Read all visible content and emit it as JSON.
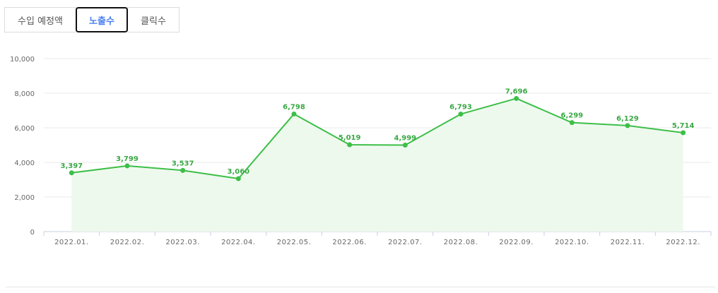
{
  "tabs": [
    {
      "label": "수입 예정액",
      "active": false
    },
    {
      "label": "노출수",
      "active": true
    },
    {
      "label": "클릭수",
      "active": false
    }
  ],
  "colors": {
    "line": "#3dbf48",
    "area": "#eef9ee",
    "label": "#3aa844",
    "tab_active": "#4a7ff2"
  },
  "chart_data": {
    "type": "area",
    "title": "",
    "xlabel": "",
    "ylabel": "",
    "ylim": [
      0,
      10000
    ],
    "yticks": [
      "0",
      "2,000",
      "4,000",
      "6,000",
      "8,000",
      "10,000"
    ],
    "ytick_values": [
      0,
      2000,
      4000,
      6000,
      8000,
      10000
    ],
    "categories": [
      "2022.01.",
      "2022.02.",
      "2022.03.",
      "2022.04.",
      "2022.05.",
      "2022.06.",
      "2022.07.",
      "2022.08.",
      "2022.09.",
      "2022.10.",
      "2022.11.",
      "2022.12."
    ],
    "values": [
      3397,
      3799,
      3537,
      3060,
      6798,
      5019,
      4999,
      6793,
      7696,
      6299,
      6129,
      5714
    ],
    "value_labels": [
      "3,397",
      "3,799",
      "3,537",
      "3,060",
      "6,798",
      "5,019",
      "4,999",
      "6,793",
      "7,696",
      "6,299",
      "6,129",
      "5,714"
    ],
    "grid": true,
    "legend": "none"
  }
}
